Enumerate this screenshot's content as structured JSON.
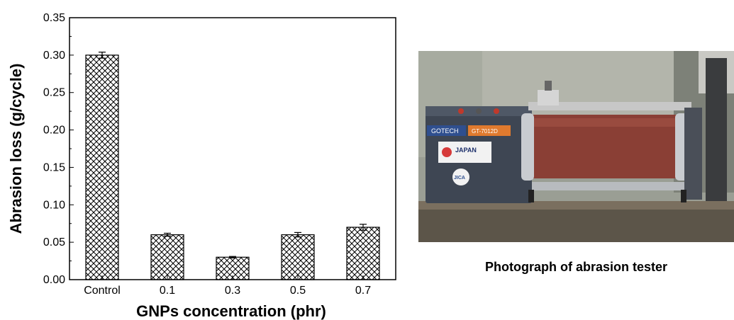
{
  "chart_data": {
    "type": "bar",
    "xlabel": "GNPs concentration (phr)",
    "ylabel": "Abrasion loss (g/cycle)",
    "categories": [
      "Control",
      "0.1",
      "0.3",
      "0.5",
      "0.7"
    ],
    "values": [
      0.3,
      0.06,
      0.03,
      0.06,
      0.07
    ],
    "errors": [
      0.004,
      0.002,
      0.001,
      0.003,
      0.004
    ],
    "ylim": [
      0,
      0.35
    ],
    "yticks": [
      "0.00",
      "0.05",
      "0.10",
      "0.15",
      "0.20",
      "0.25",
      "0.30",
      "0.35"
    ],
    "bar_pattern": "crosshatch",
    "grid": false
  },
  "photo": {
    "caption": "Photograph of abrasion tester",
    "brand_label": "GOTECH",
    "model_label": "GT-7012D",
    "country_label": "JAPAN",
    "jica_label": "JICA"
  },
  "colors": {
    "bar_fill": "#ffffff",
    "hatch": "#000000",
    "drum": "#8a3f35",
    "machine_body": "#3e4653"
  }
}
